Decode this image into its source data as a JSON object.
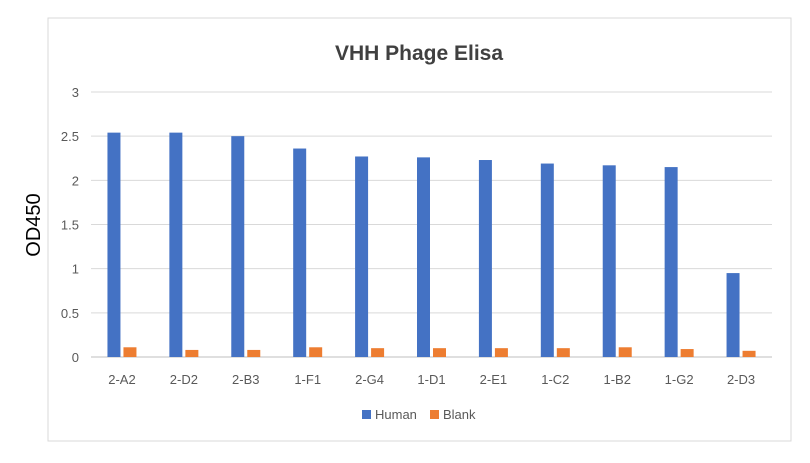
{
  "chart_data": {
    "type": "bar",
    "title": "VHH Phage Elisa",
    "xlabel": "",
    "ylabel": "OD450",
    "categories": [
      "2-A2",
      "2-D2",
      "2-B3",
      "1-F1",
      "2-G4",
      "1-D1",
      "2-E1",
      "1-C2",
      "1-B2",
      "1-G2",
      "2-D3"
    ],
    "series": [
      {
        "name": "Human",
        "color": "#4472C4",
        "values": [
          2.54,
          2.54,
          2.5,
          2.36,
          2.27,
          2.26,
          2.23,
          2.19,
          2.17,
          2.15,
          0.95
        ]
      },
      {
        "name": "Blank",
        "color": "#ED7D31",
        "values": [
          0.11,
          0.08,
          0.08,
          0.11,
          0.1,
          0.1,
          0.1,
          0.1,
          0.11,
          0.09,
          0.07
        ]
      }
    ],
    "ylim": [
      0,
      3
    ],
    "yticks": [
      "0",
      "0.5",
      "1",
      "1.5",
      "2",
      "2.5",
      "3"
    ],
    "grid": true,
    "legend_position": "bottom"
  }
}
